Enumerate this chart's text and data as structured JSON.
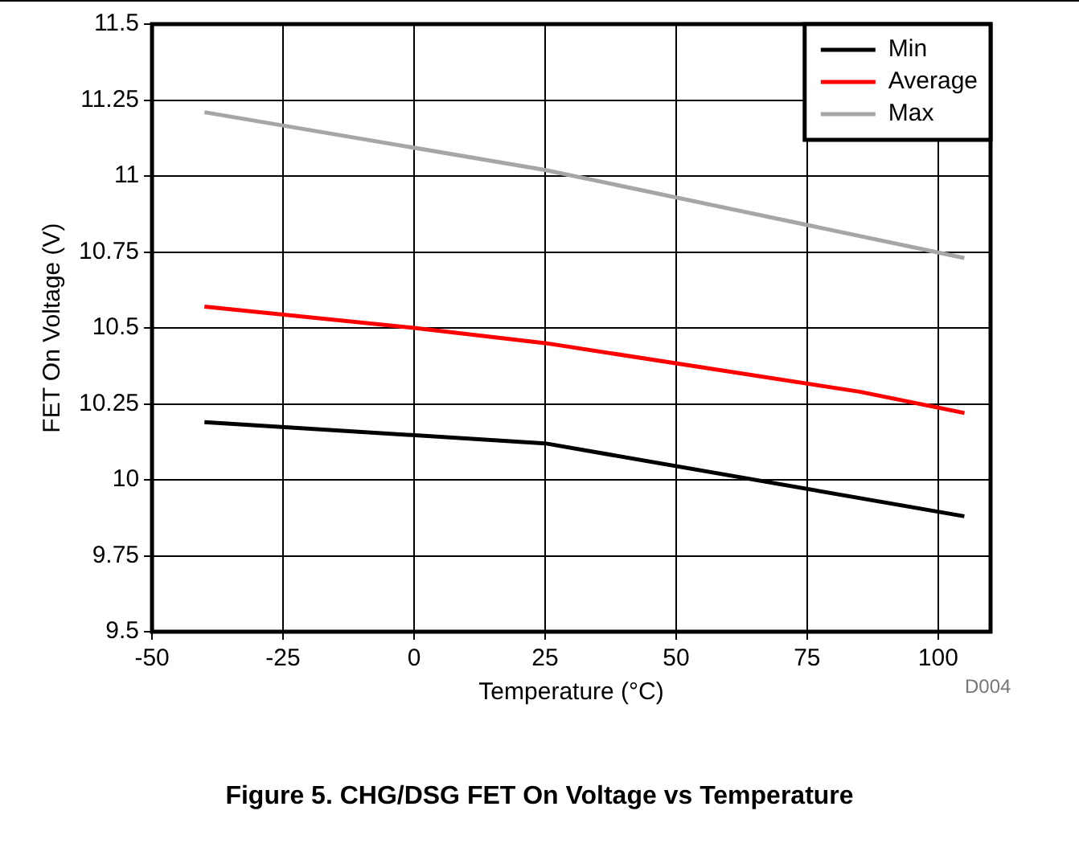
{
  "chart_data": {
    "type": "line",
    "title": "Figure 5. CHG/DSG FET On Voltage vs Temperature",
    "xlabel": "Temperature (°C)",
    "ylabel": "FET On Voltage (V)",
    "annotations": [
      "D004"
    ],
    "series": [
      {
        "name": "Min",
        "color": "#000000",
        "x": [
          -40,
          25,
          105
        ],
        "values": [
          10.19,
          10.12,
          9.88
        ]
      },
      {
        "name": "Average",
        "color": "#ff0000",
        "x": [
          -40,
          0,
          25,
          85,
          105
        ],
        "values": [
          10.57,
          10.5,
          10.45,
          10.29,
          10.22
        ]
      },
      {
        "name": "Max",
        "color": "#a6a6a6",
        "x": [
          -40,
          25,
          105
        ],
        "values": [
          11.21,
          11.02,
          10.73
        ]
      }
    ],
    "xlim": [
      -50,
      110
    ],
    "xticks": [
      -50,
      -25,
      0,
      25,
      50,
      75,
      100
    ],
    "ylim": [
      9.5,
      11.5
    ],
    "yticks": [
      9.5,
      9.75,
      10,
      10.25,
      10.5,
      10.75,
      11,
      11.25,
      11.5
    ],
    "grid": true,
    "legend": "top right",
    "marker": "none",
    "line_style": "solid"
  }
}
